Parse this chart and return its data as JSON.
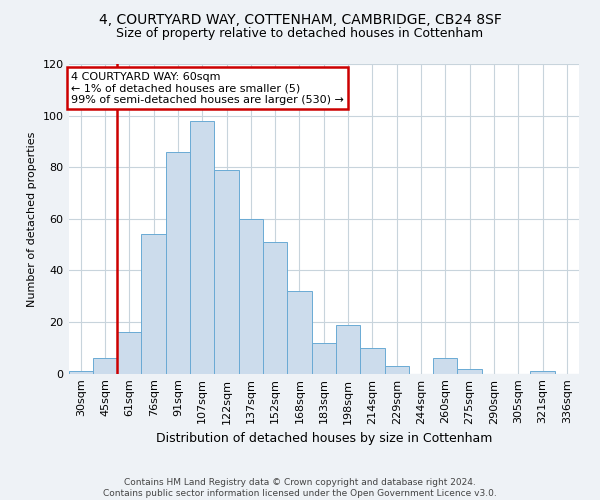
{
  "title1": "4, COURTYARD WAY, COTTENHAM, CAMBRIDGE, CB24 8SF",
  "title2": "Size of property relative to detached houses in Cottenham",
  "xlabel": "Distribution of detached houses by size in Cottenham",
  "ylabel": "Number of detached properties",
  "bin_labels": [
    "30sqm",
    "45sqm",
    "61sqm",
    "76sqm",
    "91sqm",
    "107sqm",
    "122sqm",
    "137sqm",
    "152sqm",
    "168sqm",
    "183sqm",
    "198sqm",
    "214sqm",
    "229sqm",
    "244sqm",
    "260sqm",
    "275sqm",
    "290sqm",
    "305sqm",
    "321sqm",
    "336sqm"
  ],
  "bar_heights": [
    1,
    6,
    16,
    54,
    86,
    98,
    79,
    60,
    51,
    32,
    12,
    19,
    10,
    3,
    0,
    6,
    2,
    0,
    0,
    1,
    0
  ],
  "bar_color": "#ccdcec",
  "bar_edge_color": "#6aaad4",
  "vline_x_index": 2,
  "vline_color": "#cc0000",
  "annotation_text": "4 COURTYARD WAY: 60sqm\n← 1% of detached houses are smaller (5)\n99% of semi-detached houses are larger (530) →",
  "annotation_box_edge_color": "#cc0000",
  "annotation_box_face_color": "#ffffff",
  "footer_text": "Contains HM Land Registry data © Crown copyright and database right 2024.\nContains public sector information licensed under the Open Government Licence v3.0.",
  "ylim": [
    0,
    120
  ],
  "yticks": [
    0,
    20,
    40,
    60,
    80,
    100,
    120
  ],
  "grid_color": "#c8d4dc",
  "background_color": "#eef2f6",
  "plot_bg_color": "#ffffff"
}
